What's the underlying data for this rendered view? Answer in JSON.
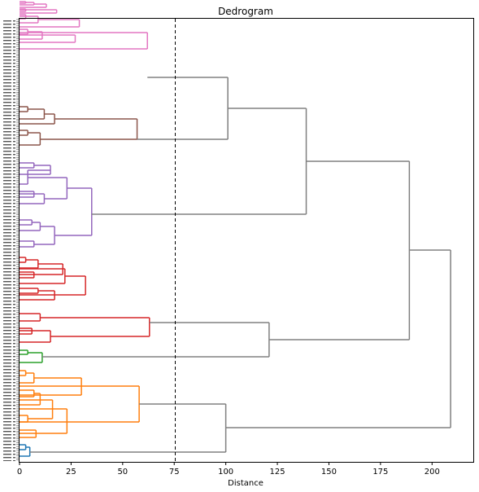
{
  "chart_data": {
    "type": "dendrogram",
    "orientation": "horizontal",
    "title": "Dedrogram",
    "xlabel": "Distance",
    "ylabel": "",
    "xlim": [
      0,
      220
    ],
    "x_ticks": [
      0,
      25,
      50,
      75,
      100,
      125,
      150,
      175,
      200
    ],
    "grid": false,
    "legend": "none",
    "threshold": {
      "value": 75,
      "style": "dashed",
      "color": "#000000"
    },
    "leaf_labels": "unreadable",
    "colors": {
      "above_threshold": "#808080",
      "clusters": [
        "#1f77b4",
        "#ff7f0e",
        "#2ca02c",
        "#d62728",
        "#9467bd",
        "#8c564b",
        "#e377c2"
      ]
    },
    "clusters": [
      {
        "color": "#e377c2",
        "root_height": 62,
        "merges": [
          {
            "a": 2,
            "b": 4,
            "h": 3
          },
          {
            "a": 3,
            "b": 6,
            "h": 7
          },
          {
            "a": 5,
            "b": 9,
            "h": 13
          },
          {
            "a": 11,
            "b": 14,
            "h": 3
          },
          {
            "a": 12,
            "b": 16,
            "h": 18
          },
          {
            "a": 18,
            "b": 23,
            "h": 3
          },
          {
            "a": 20,
            "b": 28,
            "h": 9
          },
          {
            "a": 24,
            "b": 33,
            "h": 29
          },
          {
            "a": 36,
            "b": 42,
            "h": 4
          },
          {
            "a": 39,
            "b": 48,
            "h": 11
          },
          {
            "a": 43,
            "b": 52,
            "h": 27
          },
          {
            "a": 40,
            "b": 60,
            "h": 62
          }
        ]
      },
      {
        "color": "#8c564b",
        "root_height": 57,
        "merges": [
          {
            "a": 131,
            "b": 137,
            "h": 4
          },
          {
            "a": 134,
            "b": 146,
            "h": 12
          },
          {
            "a": 140,
            "b": 152,
            "h": 17
          },
          {
            "a": 160,
            "b": 166,
            "h": 4
          },
          {
            "a": 163,
            "b": 178,
            "h": 10
          },
          {
            "a": 146,
            "b": 171,
            "h": 57
          }
        ]
      },
      {
        "color": "#9467bd",
        "root_height": 35,
        "merges": [
          {
            "a": 200,
            "b": 206,
            "h": 7
          },
          {
            "a": 203,
            "b": 214,
            "h": 15
          },
          {
            "a": 209,
            "b": 226,
            "h": 4
          },
          {
            "a": 235,
            "b": 242,
            "h": 7
          },
          {
            "a": 238,
            "b": 250,
            "h": 12
          },
          {
            "a": 218,
            "b": 244,
            "h": 23
          },
          {
            "a": 270,
            "b": 276,
            "h": 6
          },
          {
            "a": 273,
            "b": 283,
            "h": 10
          },
          {
            "a": 296,
            "b": 303,
            "h": 7
          },
          {
            "a": 278,
            "b": 300,
            "h": 17
          },
          {
            "a": 231,
            "b": 289,
            "h": 35
          }
        ]
      },
      {
        "color": "#d62728",
        "root_height": 63,
        "merges": [
          {
            "a": 316,
            "b": 322,
            "h": 3
          },
          {
            "a": 319,
            "b": 329,
            "h": 9
          },
          {
            "a": 334,
            "b": 341,
            "h": 7
          },
          {
            "a": 324,
            "b": 337,
            "h": 21
          },
          {
            "a": 330,
            "b": 348,
            "h": 22
          },
          {
            "a": 354,
            "b": 360,
            "h": 9
          },
          {
            "a": 357,
            "b": 368,
            "h": 17
          },
          {
            "a": 339,
            "b": 362,
            "h": 32
          },
          {
            "a": 385,
            "b": 394,
            "h": 10
          },
          {
            "a": 403,
            "b": 410,
            "h": 6
          },
          {
            "a": 406,
            "b": 420,
            "h": 15
          },
          {
            "a": 390,
            "b": 413,
            "h": 63
          }
        ]
      },
      {
        "color": "#2ca02c",
        "root_height": 11,
        "merges": [
          {
            "a": 430,
            "b": 435,
            "h": 4
          },
          {
            "a": 433,
            "b": 445,
            "h": 11
          }
        ]
      },
      {
        "color": "#ff7f0e",
        "root_height": 58,
        "merges": [
          {
            "a": 455,
            "b": 461,
            "h": 3
          },
          {
            "a": 458,
            "b": 470,
            "h": 7
          },
          {
            "a": 464,
            "b": 485,
            "h": 30
          },
          {
            "a": 479,
            "b": 487,
            "h": 7
          },
          {
            "a": 483,
            "b": 497,
            "h": 10
          },
          {
            "a": 510,
            "b": 518,
            "h": 4
          },
          {
            "a": 491,
            "b": 514,
            "h": 16
          },
          {
            "a": 528,
            "b": 537,
            "h": 8
          },
          {
            "a": 502,
            "b": 532,
            "h": 23
          },
          {
            "a": 474,
            "b": 518,
            "h": 58
          }
        ]
      },
      {
        "color": "#1f77b4",
        "root_height": 5,
        "merges": [
          {
            "a": 546,
            "b": 552,
            "h": 3
          },
          {
            "a": 549,
            "b": 560,
            "h": 5
          }
        ]
      }
    ],
    "upper_merges": [
      {
        "a": 95,
        "b": 171,
        "h": 101
      },
      {
        "a": 133,
        "b": 263,
        "h": 139
      },
      {
        "a": 396,
        "b": 438,
        "h": 121
      },
      {
        "a": 198,
        "b": 417,
        "h": 189
      },
      {
        "a": 496,
        "b": 555,
        "h": 100
      },
      {
        "a": 307,
        "b": 525,
        "h": 209
      }
    ],
    "upper_merge_from": {
      "95": 62,
      "171": 57,
      "133": 101,
      "263": 35,
      "396": 63,
      "438": 11,
      "198": 139,
      "417": 121,
      "496": 58,
      "555": 5,
      "307": 189,
      "525": 100
    }
  },
  "chart": {
    "title": "Dedrogram",
    "xlabel": "Distance",
    "x_tick_labels": [
      "0",
      "25",
      "50",
      "75",
      "100",
      "125",
      "150",
      "175",
      "200"
    ]
  }
}
